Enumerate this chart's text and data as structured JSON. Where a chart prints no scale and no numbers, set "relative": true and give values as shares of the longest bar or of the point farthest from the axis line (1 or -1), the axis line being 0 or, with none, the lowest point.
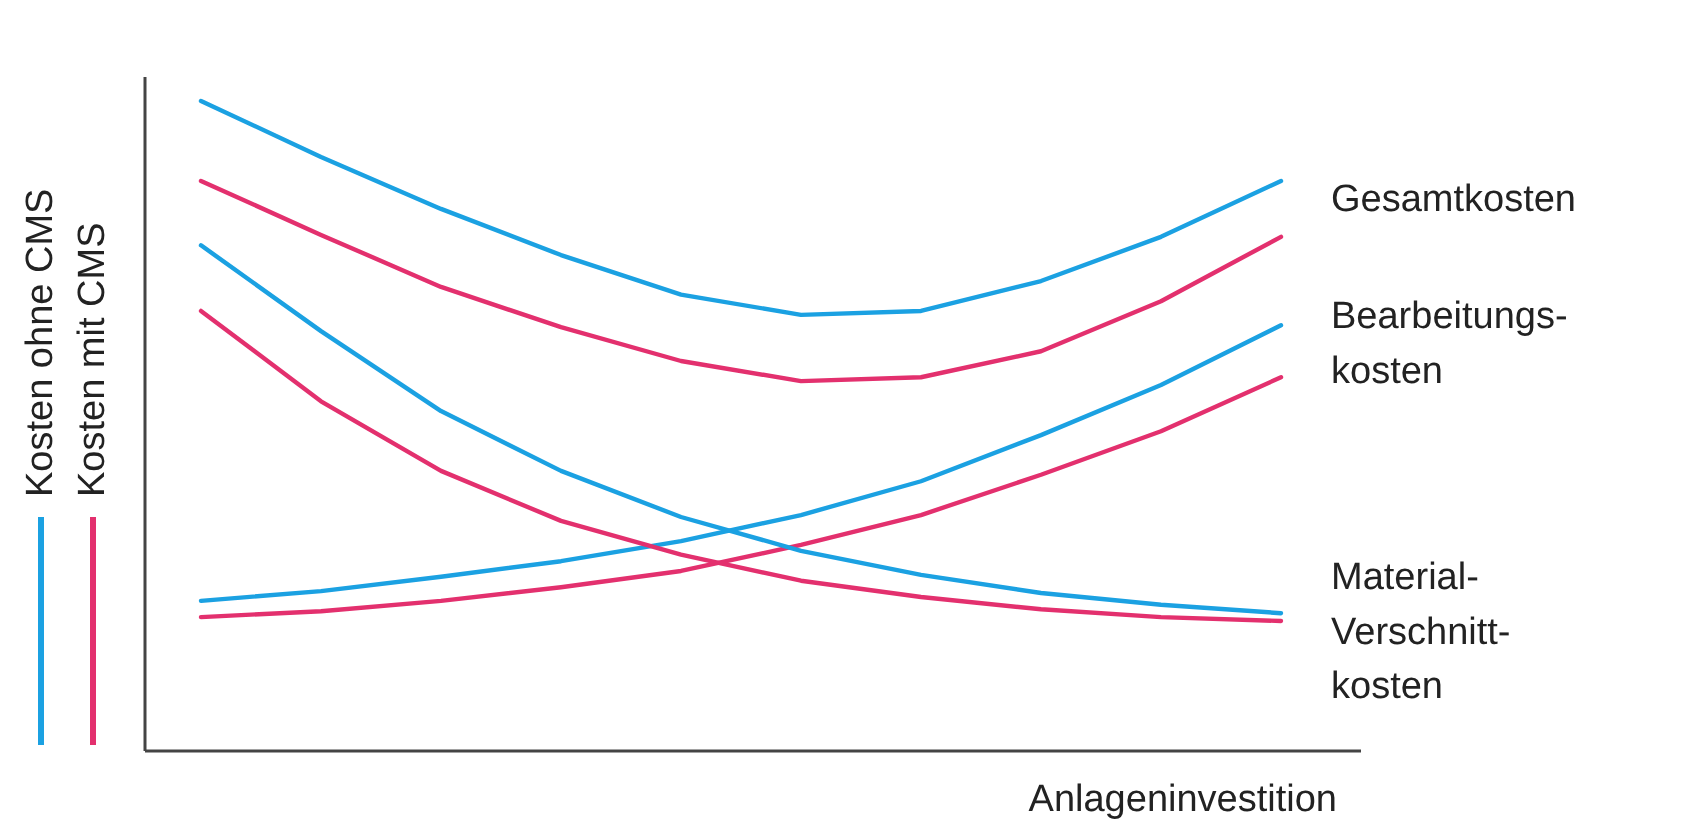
{
  "chart_data": {
    "type": "line",
    "relative": true,
    "xlabel": "Anlageninvestition",
    "categories": [
      null,
      null,
      null,
      null,
      null,
      null,
      null,
      null,
      null,
      null
    ],
    "annotations": [
      "Kosten ohne CMS",
      "Kosten mit CMS"
    ],
    "series": [
      {
        "name": "Gesamtkosten",
        "color": "#1ba1e2",
        "values": [
          1.0,
          0.914,
          0.834,
          0.763,
          0.702,
          0.671,
          0.677,
          0.723,
          0.791,
          0.877
        ]
      },
      {
        "color": "#e3306e",
        "values": [
          0.877,
          0.794,
          0.714,
          0.652,
          0.6,
          0.569,
          0.575,
          0.615,
          0.692,
          0.791
        ]
      },
      {
        "name": "Bearbeitungs-\nkosten",
        "color": "#1ba1e2",
        "values": [
          0.231,
          0.246,
          0.268,
          0.292,
          0.323,
          0.363,
          0.415,
          0.486,
          0.563,
          0.655
        ]
      },
      {
        "color": "#e3306e",
        "values": [
          0.206,
          0.215,
          0.231,
          0.252,
          0.277,
          0.317,
          0.363,
          0.425,
          0.492,
          0.575
        ]
      },
      {
        "name": "Material-\nVerschnitt-\nkosten",
        "color": "#1ba1e2",
        "values": [
          0.778,
          0.646,
          0.523,
          0.431,
          0.36,
          0.308,
          0.271,
          0.243,
          0.225,
          0.212
        ]
      },
      {
        "color": "#e3306e",
        "values": [
          0.677,
          0.538,
          0.431,
          0.354,
          0.302,
          0.262,
          0.237,
          0.218,
          0.206,
          0.2
        ]
      }
    ]
  }
}
